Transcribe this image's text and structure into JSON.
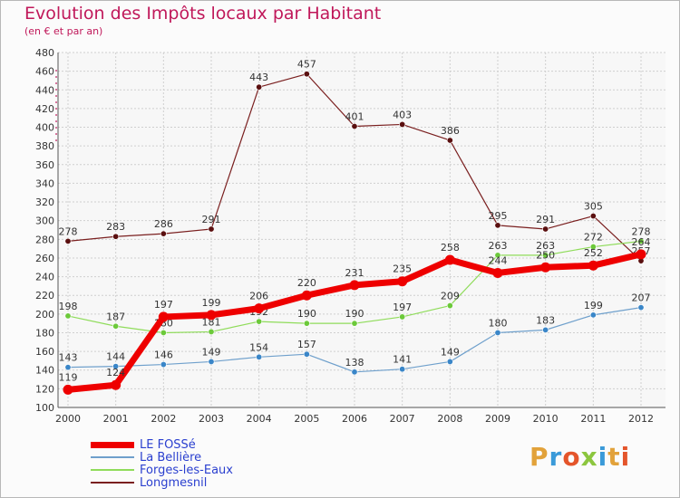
{
  "header": {
    "title": "Evolution des Impôts locaux par Habitant",
    "subtitle": "(en € et par an)"
  },
  "logo": {
    "text": "Proxiti",
    "colors": [
      "#e2a23a",
      "#3a9ad9",
      "#e4552b",
      "#8cc63f",
      "#3a9ad9",
      "#e2a23a",
      "#e4552b"
    ]
  },
  "chart_data": {
    "type": "line",
    "title": "Evolution des Impôts locaux par Habitant",
    "subtitle": "(en € et par an)",
    "categories": [
      "2000",
      "2001",
      "2002",
      "2003",
      "2004",
      "2005",
      "2006",
      "2007",
      "2008",
      "2009",
      "2010",
      "2011",
      "2012"
    ],
    "ylim": [
      100,
      480
    ],
    "yticks": [
      100,
      120,
      140,
      160,
      180,
      200,
      220,
      240,
      260,
      280,
      300,
      320,
      340,
      360,
      380,
      400,
      420,
      440,
      460,
      480
    ],
    "grid": true,
    "legend_position": "bottom-left",
    "series": [
      {
        "name": "Longmesnil",
        "color": "#7a1f1f",
        "marker": "#5a0f0f",
        "width": 1.2,
        "values": [
          278,
          283,
          286,
          291,
          443,
          457,
          401,
          403,
          386,
          295,
          291,
          305,
          257
        ],
        "labels": [
          "278",
          "283",
          "286",
          "291",
          "443",
          "457",
          "401",
          "403",
          "386",
          "295",
          "291",
          "305",
          "257"
        ]
      },
      {
        "name": "Forges-les-Eaux",
        "color": "#8fdc5a",
        "marker": "#6cc93a",
        "width": 1.2,
        "values": [
          198,
          187,
          180,
          181,
          192,
          190,
          190,
          197,
          209,
          263,
          263,
          272,
          278
        ],
        "labels": [
          "198",
          "187",
          "180",
          "181",
          "192",
          "190",
          "190",
          "197",
          "209",
          "263",
          "263",
          "272",
          "278"
        ]
      },
      {
        "name": "La Bellière",
        "color": "#6fa0cc",
        "marker": "#3a86c8",
        "width": 1.2,
        "values": [
          143,
          144,
          146,
          149,
          154,
          157,
          138,
          141,
          149,
          180,
          183,
          199,
          207
        ],
        "labels": [
          "143",
          "144",
          "146",
          "149",
          "154",
          "157",
          "138",
          "141",
          "149",
          "180",
          "183",
          "199",
          "207"
        ]
      },
      {
        "name": "LE FOSSé",
        "color": "#ee0000",
        "marker": "#ee0000",
        "width": 7,
        "values": [
          119,
          124,
          197,
          199,
          206,
          220,
          231,
          235,
          258,
          244,
          250,
          252,
          264
        ],
        "labels": [
          "119",
          "124",
          "197",
          "199",
          "206",
          "220",
          "231",
          "235",
          "258",
          "244",
          "250",
          "252",
          "264"
        ]
      }
    ],
    "legend": [
      "LE FOSSé",
      "La Bellière",
      "Forges-les-Eaux",
      "Longmesnil"
    ]
  }
}
